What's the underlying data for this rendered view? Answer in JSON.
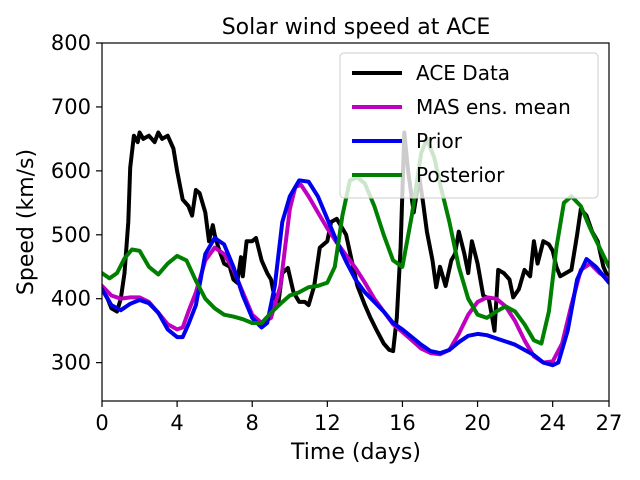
{
  "chart_data": {
    "type": "line",
    "title": "Solar wind speed at ACE",
    "xlabel": "Time (days)",
    "ylabel": "Speed (km/s)",
    "xlim": [
      0,
      27
    ],
    "ylim": [
      240,
      800
    ],
    "xticks": [
      0,
      4,
      8,
      12,
      16,
      20,
      24,
      27
    ],
    "yticks": [
      300,
      400,
      500,
      600,
      700,
      800
    ],
    "legend_position": "top-right",
    "grid": false,
    "series": [
      {
        "name": "ACE Data",
        "color": "#000000",
        "points": [
          [
            0,
            415
          ],
          [
            0.3,
            400
          ],
          [
            0.5,
            385
          ],
          [
            0.8,
            380
          ],
          [
            1.0,
            400
          ],
          [
            1.2,
            440
          ],
          [
            1.4,
            520
          ],
          [
            1.5,
            605
          ],
          [
            1.7,
            655
          ],
          [
            1.9,
            645
          ],
          [
            2.0,
            660
          ],
          [
            2.2,
            650
          ],
          [
            2.5,
            655
          ],
          [
            2.8,
            645
          ],
          [
            3.0,
            660
          ],
          [
            3.2,
            650
          ],
          [
            3.5,
            655
          ],
          [
            3.8,
            635
          ],
          [
            4.0,
            600
          ],
          [
            4.3,
            555
          ],
          [
            4.6,
            545
          ],
          [
            4.8,
            530
          ],
          [
            5.0,
            570
          ],
          [
            5.2,
            565
          ],
          [
            5.5,
            535
          ],
          [
            5.7,
            490
          ],
          [
            5.9,
            515
          ],
          [
            6.0,
            500
          ],
          [
            6.2,
            480
          ],
          [
            6.5,
            455
          ],
          [
            6.8,
            450
          ],
          [
            7.0,
            430
          ],
          [
            7.2,
            425
          ],
          [
            7.4,
            465
          ],
          [
            7.5,
            435
          ],
          [
            7.7,
            490
          ],
          [
            8.0,
            490
          ],
          [
            8.2,
            495
          ],
          [
            8.5,
            460
          ],
          [
            8.8,
            440
          ],
          [
            9.0,
            430
          ],
          [
            9.2,
            400
          ],
          [
            9.4,
            395
          ],
          [
            9.6,
            440
          ],
          [
            9.9,
            448
          ],
          [
            10.2,
            410
          ],
          [
            10.5,
            395
          ],
          [
            10.8,
            395
          ],
          [
            11.0,
            390
          ],
          [
            11.3,
            420
          ],
          [
            11.6,
            480
          ],
          [
            12.0,
            490
          ],
          [
            12.2,
            520
          ],
          [
            12.5,
            525
          ],
          [
            12.8,
            510
          ],
          [
            13.0,
            500
          ],
          [
            13.3,
            460
          ],
          [
            13.6,
            420
          ],
          [
            14.0,
            390
          ],
          [
            14.3,
            370
          ],
          [
            14.6,
            352
          ],
          [
            15.0,
            330
          ],
          [
            15.3,
            320
          ],
          [
            15.5,
            318
          ],
          [
            15.7,
            370
          ],
          [
            15.9,
            480
          ],
          [
            16.1,
            660
          ],
          [
            16.3,
            600
          ],
          [
            16.6,
            535
          ],
          [
            16.9,
            590
          ],
          [
            17.1,
            550
          ],
          [
            17.3,
            505
          ],
          [
            17.6,
            460
          ],
          [
            17.8,
            418
          ],
          [
            18.0,
            450
          ],
          [
            18.3,
            420
          ],
          [
            18.6,
            460
          ],
          [
            18.8,
            470
          ],
          [
            19.0,
            505
          ],
          [
            19.3,
            470
          ],
          [
            19.5,
            440
          ],
          [
            19.7,
            490
          ],
          [
            20.0,
            455
          ],
          [
            20.3,
            405
          ],
          [
            20.6,
            400
          ],
          [
            20.9,
            350
          ],
          [
            21.1,
            445
          ],
          [
            21.4,
            440
          ],
          [
            21.7,
            430
          ],
          [
            21.9,
            402
          ],
          [
            22.2,
            415
          ],
          [
            22.5,
            445
          ],
          [
            22.8,
            435
          ],
          [
            23.0,
            490
          ],
          [
            23.2,
            455
          ],
          [
            23.5,
            490
          ],
          [
            23.8,
            485
          ],
          [
            24.0,
            475
          ],
          [
            24.2,
            450
          ],
          [
            24.4,
            435
          ],
          [
            24.7,
            440
          ],
          [
            25.0,
            445
          ],
          [
            25.3,
            500
          ],
          [
            25.5,
            540
          ],
          [
            25.8,
            530
          ],
          [
            26.1,
            505
          ],
          [
            26.4,
            490
          ],
          [
            26.7,
            450
          ],
          [
            27,
            430
          ]
        ]
      },
      {
        "name": "MAS ens. mean",
        "color": "#bf00bf",
        "points": [
          [
            0,
            420
          ],
          [
            0.5,
            405
          ],
          [
            1.0,
            400
          ],
          [
            1.5,
            402
          ],
          [
            2.0,
            402
          ],
          [
            2.5,
            395
          ],
          [
            3.0,
            378
          ],
          [
            3.5,
            360
          ],
          [
            4.0,
            352
          ],
          [
            4.3,
            355
          ],
          [
            4.6,
            380
          ],
          [
            5.0,
            410
          ],
          [
            5.5,
            460
          ],
          [
            6.0,
            480
          ],
          [
            6.5,
            470
          ],
          [
            7.0,
            445
          ],
          [
            7.5,
            410
          ],
          [
            8.0,
            375
          ],
          [
            8.5,
            362
          ],
          [
            9.0,
            370
          ],
          [
            9.5,
            420
          ],
          [
            10.0,
            540
          ],
          [
            10.3,
            575
          ],
          [
            10.6,
            578
          ],
          [
            11.0,
            560
          ],
          [
            11.5,
            535
          ],
          [
            12.0,
            510
          ],
          [
            12.5,
            488
          ],
          [
            13.0,
            468
          ],
          [
            13.5,
            448
          ],
          [
            14.0,
            425
          ],
          [
            14.5,
            400
          ],
          [
            15.0,
            380
          ],
          [
            15.5,
            360
          ],
          [
            16.0,
            348
          ],
          [
            16.5,
            335
          ],
          [
            17.0,
            322
          ],
          [
            17.5,
            315
          ],
          [
            18.0,
            313
          ],
          [
            18.5,
            320
          ],
          [
            19.0,
            345
          ],
          [
            19.5,
            375
          ],
          [
            20.0,
            395
          ],
          [
            20.5,
            402
          ],
          [
            21.0,
            400
          ],
          [
            21.5,
            388
          ],
          [
            22.0,
            365
          ],
          [
            22.5,
            335
          ],
          [
            23.0,
            310
          ],
          [
            23.5,
            300
          ],
          [
            24.0,
            302
          ],
          [
            24.5,
            330
          ],
          [
            25.0,
            390
          ],
          [
            25.5,
            445
          ],
          [
            26.0,
            455
          ],
          [
            26.5,
            440
          ],
          [
            27,
            430
          ]
        ]
      },
      {
        "name": "Prior",
        "color": "#0000ee",
        "points": [
          [
            0,
            415
          ],
          [
            0.5,
            390
          ],
          [
            1.0,
            382
          ],
          [
            1.5,
            392
          ],
          [
            2.0,
            398
          ],
          [
            2.5,
            393
          ],
          [
            3.0,
            378
          ],
          [
            3.5,
            352
          ],
          [
            4.0,
            340
          ],
          [
            4.3,
            340
          ],
          [
            4.6,
            360
          ],
          [
            5.0,
            390
          ],
          [
            5.5,
            470
          ],
          [
            6.0,
            495
          ],
          [
            6.5,
            485
          ],
          [
            7.0,
            450
          ],
          [
            7.5,
            405
          ],
          [
            8.0,
            370
          ],
          [
            8.5,
            355
          ],
          [
            8.8,
            362
          ],
          [
            9.2,
            420
          ],
          [
            9.6,
            520
          ],
          [
            10.0,
            560
          ],
          [
            10.5,
            585
          ],
          [
            11.0,
            583
          ],
          [
            11.5,
            560
          ],
          [
            12.0,
            525
          ],
          [
            12.5,
            490
          ],
          [
            13.0,
            458
          ],
          [
            13.5,
            430
          ],
          [
            14.0,
            410
          ],
          [
            14.5,
            395
          ],
          [
            15.0,
            380
          ],
          [
            15.5,
            362
          ],
          [
            16.0,
            352
          ],
          [
            16.5,
            340
          ],
          [
            17.0,
            328
          ],
          [
            17.5,
            318
          ],
          [
            18.0,
            315
          ],
          [
            18.5,
            320
          ],
          [
            19.0,
            332
          ],
          [
            19.5,
            342
          ],
          [
            20.0,
            345
          ],
          [
            20.5,
            343
          ],
          [
            21.0,
            338
          ],
          [
            21.5,
            333
          ],
          [
            22.0,
            328
          ],
          [
            22.5,
            320
          ],
          [
            23.0,
            312
          ],
          [
            23.5,
            300
          ],
          [
            24.0,
            296
          ],
          [
            24.3,
            300
          ],
          [
            24.8,
            350
          ],
          [
            25.3,
            430
          ],
          [
            25.8,
            462
          ],
          [
            26.3,
            450
          ],
          [
            27,
            425
          ]
        ]
      },
      {
        "name": "Posterior",
        "color": "#008000",
        "points": [
          [
            0,
            440
          ],
          [
            0.4,
            432
          ],
          [
            0.8,
            440
          ],
          [
            1.2,
            463
          ],
          [
            1.6,
            477
          ],
          [
            2.0,
            475
          ],
          [
            2.5,
            450
          ],
          [
            3.0,
            438
          ],
          [
            3.5,
            455
          ],
          [
            4.0,
            467
          ],
          [
            4.5,
            460
          ],
          [
            5.0,
            428
          ],
          [
            5.5,
            400
          ],
          [
            6.0,
            385
          ],
          [
            6.5,
            375
          ],
          [
            7.0,
            372
          ],
          [
            7.5,
            368
          ],
          [
            8.0,
            362
          ],
          [
            8.5,
            362
          ],
          [
            9.0,
            378
          ],
          [
            9.5,
            392
          ],
          [
            10.0,
            405
          ],
          [
            10.5,
            410
          ],
          [
            11.0,
            418
          ],
          [
            11.5,
            420
          ],
          [
            12.0,
            425
          ],
          [
            12.4,
            450
          ],
          [
            12.8,
            530
          ],
          [
            13.2,
            585
          ],
          [
            13.6,
            590
          ],
          [
            14.0,
            580
          ],
          [
            14.5,
            545
          ],
          [
            15.0,
            500
          ],
          [
            15.5,
            460
          ],
          [
            16.0,
            450
          ],
          [
            16.5,
            530
          ],
          [
            17.0,
            628
          ],
          [
            17.3,
            650
          ],
          [
            17.7,
            620
          ],
          [
            18.0,
            580
          ],
          [
            18.5,
            520
          ],
          [
            19.0,
            450
          ],
          [
            19.5,
            400
          ],
          [
            20.0,
            375
          ],
          [
            20.5,
            370
          ],
          [
            21.0,
            380
          ],
          [
            21.5,
            388
          ],
          [
            22.0,
            380
          ],
          [
            22.5,
            360
          ],
          [
            23.0,
            335
          ],
          [
            23.4,
            330
          ],
          [
            23.8,
            380
          ],
          [
            24.2,
            480
          ],
          [
            24.6,
            550
          ],
          [
            25.0,
            560
          ],
          [
            25.5,
            545
          ],
          [
            26.0,
            510
          ],
          [
            26.5,
            480
          ],
          [
            27,
            450
          ]
        ]
      }
    ]
  }
}
